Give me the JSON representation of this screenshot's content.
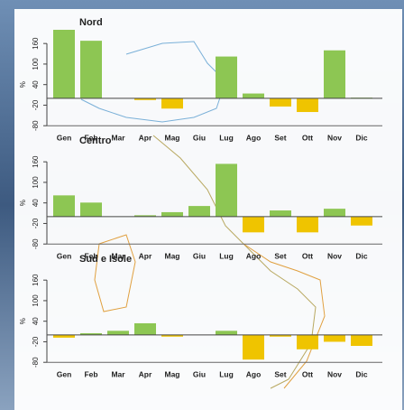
{
  "chart_data": [
    {
      "type": "bar",
      "title": "Nord",
      "y_label": "%",
      "categories": [
        "Gen",
        "Feb",
        "Mar",
        "Apr",
        "Mag",
        "Giu",
        "Lug",
        "Ago",
        "Set",
        "Ott",
        "Nov",
        "Dic"
      ],
      "values": [
        200,
        168,
        0,
        -5,
        -30,
        0,
        122,
        14,
        -24,
        -40,
        140,
        2
      ],
      "color": "#8dc653",
      "negative_color": "#efc400",
      "ylim": [
        -90,
        200
      ],
      "yticks": [
        -80,
        -20,
        40,
        100,
        160
      ]
    },
    {
      "type": "bar",
      "title": "Centro",
      "y_label": "%",
      "categories": [
        "Gen",
        "Feb",
        "Mar",
        "Apr",
        "Mag",
        "Giu",
        "Lug",
        "Ago",
        "Set",
        "Ott",
        "Nov",
        "Dic"
      ],
      "values": [
        62,
        41,
        0,
        4,
        13,
        31,
        154,
        -46,
        18,
        -46,
        23,
        -26
      ],
      "color": "#8dc653",
      "negative_color": "#efc400",
      "ylim": [
        -90,
        200
      ],
      "yticks": [
        -80,
        -20,
        40,
        100,
        160
      ]
    },
    {
      "type": "bar",
      "title": "Sud e Isole",
      "y_label": "%",
      "categories": [
        "Gen",
        "Feb",
        "Mar",
        "Apr",
        "Mag",
        "Giu",
        "Lug",
        "Ago",
        "Set",
        "Ott",
        "Nov",
        "Dic"
      ],
      "values": [
        -8,
        5,
        12,
        34,
        -5,
        0,
        12,
        -72,
        -5,
        -42,
        -20,
        -32
      ],
      "color": "#8dc653",
      "negative_color": "#efc400",
      "ylim": [
        -90,
        200
      ],
      "yticks": [
        -80,
        -20,
        40,
        100,
        160
      ]
    }
  ]
}
